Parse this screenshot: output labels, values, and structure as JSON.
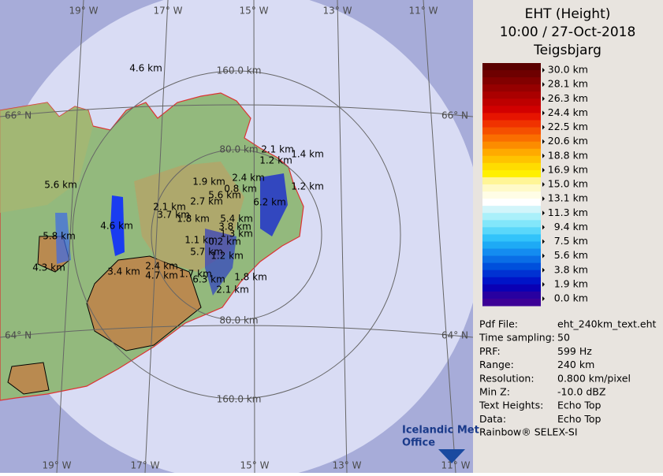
{
  "header": {
    "title": "EHT (Height)",
    "time": "10:00 / 27-Oct-2018",
    "site": "Teigsbjarg"
  },
  "map": {
    "top_longitudes": [
      "19° W",
      "17° W",
      "15° W",
      "13° W",
      "11° W"
    ],
    "bottom_longitudes": [
      "19° W",
      "17° W",
      "15° W",
      "13° W",
      "11° W"
    ],
    "latitudes_left": [
      "66° N",
      "64° N"
    ],
    "latitudes_right": [
      "66° N",
      "64° N"
    ],
    "range_labels": [
      "160.0 km",
      "80.0 km",
      "80.0 km",
      "160.0 km"
    ],
    "echo_labels": [
      "4.6 km",
      "2.1 km",
      "1.4 km",
      "1.2 km",
      "2.4 km",
      "1.9 km",
      "0.8 km",
      "1.2 km",
      "5.6 km",
      "5.6 km",
      "2.7 km",
      "6.2 km",
      "2.1 km",
      "3.7 km",
      "1.8 km",
      "5.4 km",
      "3.8 km",
      "1.3 km",
      "4.6 km",
      "5.8 km",
      "1.1 km",
      "0.2 km",
      "5.7 km",
      "1.2 km",
      "4.3 km",
      "3.4 km",
      "2.4 km",
      "4.7 km",
      "1.7 km",
      "1.8 km",
      "6.3 km",
      "2.1 km"
    ]
  },
  "scale": {
    "labels": [
      "30.0 km",
      "28.1 km",
      "26.3 km",
      "24.4 km",
      "22.5 km",
      "20.6 km",
      "18.8 km",
      "16.9 km",
      "15.0 km",
      "13.1 km",
      "11.3 km",
      "9.4 km",
      "7.5 km",
      "5.6 km",
      "3.8 km",
      "1.9 km",
      "0.0 km"
    ],
    "colors": [
      "#5a0000",
      "#6e0000",
      "#820000",
      "#960000",
      "#aa0000",
      "#be0000",
      "#d20000",
      "#e61400",
      "#f03200",
      "#f55000",
      "#fa6e00",
      "#fc8c00",
      "#ffaa00",
      "#ffc300",
      "#ffdc00",
      "#fff000",
      "#fff596",
      "#fffac8",
      "#fffde6",
      "#ffffff",
      "#d2f5fa",
      "#aaf0fa",
      "#82e6fa",
      "#5ad7fa",
      "#32c3fa",
      "#1eaaf5",
      "#148cf0",
      "#0a6ee6",
      "#0050dc",
      "#0032d2",
      "#0014c8",
      "#0a00b4",
      "#2800a0",
      "#3c0096"
    ]
  },
  "info": [
    [
      "Pdf File:",
      "eht_240km_text.eht"
    ],
    [
      "Time sampling:",
      "50"
    ],
    [
      "PRF:",
      "599 Hz"
    ],
    [
      "Range:",
      "240 km"
    ],
    [
      "Resolution:",
      "0.800 km/pixel"
    ],
    [
      "Min Z:",
      "-10.0 dBZ"
    ],
    [
      "Text Heights:",
      "Echo Top"
    ],
    [
      "Data:",
      "Echo Top"
    ]
  ],
  "logo": {
    "line1": "Icelandic Met",
    "line2": "Office"
  },
  "footer": "Rainbow® SELEX-SI"
}
